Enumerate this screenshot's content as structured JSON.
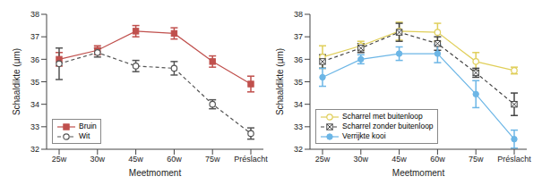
{
  "chart_data": [
    {
      "type": "line",
      "x_label": "Meetmoment",
      "y_label": "Schaaldikte (µm)",
      "categories": [
        "25w",
        "30w",
        "45w",
        "60w",
        "75w",
        "Préslacht"
      ],
      "ylim": [
        32,
        38
      ],
      "yticks": [
        32,
        33,
        34,
        35,
        36,
        37,
        38
      ],
      "legend": "lower left",
      "series": [
        {
          "name": "Bruin",
          "color": "#c0504d",
          "marker": "square",
          "line_style": "solid",
          "values": [
            36.0,
            36.4,
            37.25,
            37.15,
            35.9,
            34.9
          ],
          "errors": [
            0.3,
            0.2,
            0.25,
            0.25,
            0.25,
            0.35
          ]
        },
        {
          "name": "Wit",
          "color": "#555555",
          "marker": "circle_open",
          "line_style": "dashed",
          "values": [
            35.8,
            36.3,
            35.7,
            35.6,
            34.0,
            32.7
          ],
          "errors": [
            0.7,
            0.2,
            0.25,
            0.3,
            0.2,
            0.25
          ]
        }
      ]
    },
    {
      "type": "line",
      "x_label": "Meetmoment",
      "y_label": "Schaaldikte (µm)",
      "categories": [
        "25w",
        "30w",
        "45w",
        "60w",
        "75w",
        "Préslacht"
      ],
      "ylim": [
        32,
        38
      ],
      "yticks": [
        32,
        33,
        34,
        35,
        36,
        37,
        38
      ],
      "legend": "lower left",
      "series": [
        {
          "name": "Scharrel met buitenloop",
          "color": "#e0cf5a",
          "marker": "circle_open",
          "line_style": "solid",
          "values": [
            36.1,
            36.6,
            37.25,
            37.2,
            35.9,
            35.5
          ],
          "errors": [
            0.5,
            0.2,
            0.4,
            0.4,
            0.4,
            0.15
          ]
        },
        {
          "name": "Scharrel zonder buitenloop",
          "color": "#444444",
          "marker": "square_crossed",
          "line_style": "dashed",
          "values": [
            35.9,
            36.5,
            37.2,
            36.7,
            35.4,
            34.0
          ],
          "errors": [
            0.3,
            0.2,
            0.4,
            0.3,
            0.2,
            0.5
          ]
        },
        {
          "name": "Verrijkte kooi",
          "color": "#6cb6e6",
          "marker": "circle",
          "line_style": "solid",
          "values": [
            35.2,
            36.0,
            36.25,
            36.25,
            34.45,
            32.45
          ],
          "errors": [
            0.4,
            0.2,
            0.3,
            0.4,
            0.6,
            0.4
          ]
        }
      ]
    }
  ]
}
